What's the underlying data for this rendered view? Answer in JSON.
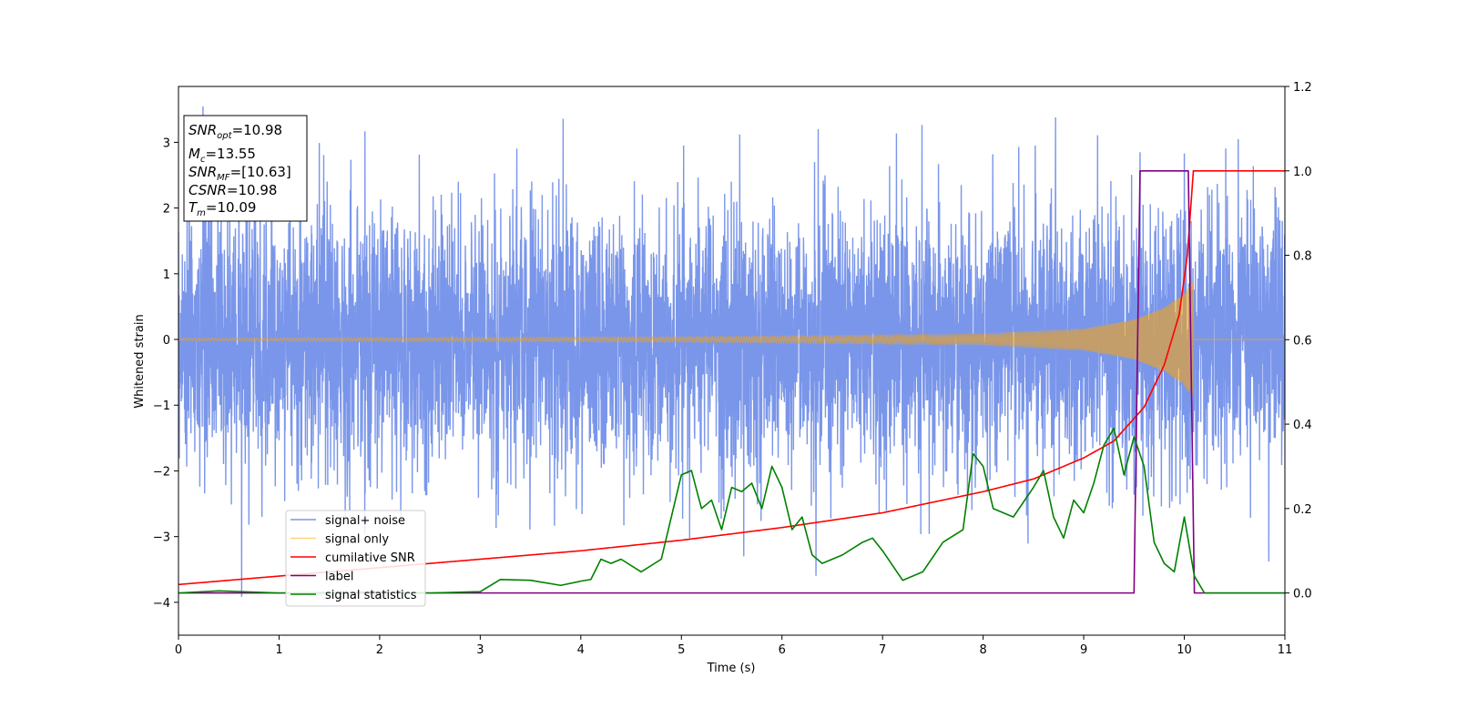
{
  "chart_data": {
    "type": "line",
    "xlabel": "Time (s)",
    "ylabel": "Whitened strain",
    "xlim": [
      0,
      11
    ],
    "ylim_left": [
      -4.5,
      3.85
    ],
    "ylim_right": [
      -0.1,
      1.2
    ],
    "x_ticks": [
      0,
      1,
      2,
      3,
      4,
      5,
      6,
      7,
      8,
      9,
      10,
      11
    ],
    "y_ticks_left": [
      -4,
      -3,
      -2,
      -1,
      0,
      1,
      2,
      3
    ],
    "y_ticks_right": [
      0.0,
      0.2,
      0.4,
      0.6,
      0.8,
      1.0,
      1.2
    ],
    "y_tick_labels_left": [
      "−4",
      "−3",
      "−2",
      "−1",
      "0",
      "1",
      "2",
      "3"
    ],
    "y_tick_labels_right": [
      "0.0",
      "0.2",
      "0.4",
      "0.6",
      "0.8",
      "1.0",
      "1.2"
    ],
    "grid": false,
    "legend_position": "lower-left",
    "stats_box": {
      "snr_opt": {
        "base": "SNR",
        "sub": "opt",
        "value": "=10.98"
      },
      "mc": {
        "base": "M",
        "sub": "c",
        "value": "=13.55"
      },
      "snr_mf": {
        "base": "SNR",
        "sub": "MF",
        "value": "=[10.63]"
      },
      "csnr": {
        "base": "CSNR",
        "value": "=10.98"
      },
      "tm": {
        "base": "T",
        "sub": "m",
        "value": "=10.09"
      }
    },
    "series": [
      {
        "name": "signal+ noise",
        "axis": "left",
        "color": "#4169e1",
        "kind": "noise",
        "x_range": [
          0,
          11
        ],
        "sigma": 1.0,
        "sample_rate_hz": 500,
        "notable_peaks": [
          {
            "x": 8.72,
            "y": 3.38
          },
          {
            "x": 5.58,
            "y": 3.12
          },
          {
            "x": 6.36,
            "y": 3.2
          },
          {
            "x": 9.56,
            "y": 2.85
          },
          {
            "x": 10.0,
            "y": 2.83
          },
          {
            "x": 10.84,
            "y": -3.38
          },
          {
            "x": 0.7,
            "y": -2.82
          },
          {
            "x": 5.62,
            "y": -3.3
          }
        ]
      },
      {
        "name": "signal only",
        "axis": "left",
        "color": "#ffa500",
        "kind": "chirp",
        "t_merge": 10.09,
        "amplitude_points": [
          [
            0,
            0.02
          ],
          [
            5,
            0.04
          ],
          [
            8,
            0.08
          ],
          [
            9,
            0.16
          ],
          [
            9.5,
            0.3
          ],
          [
            9.8,
            0.48
          ],
          [
            10.0,
            0.7
          ],
          [
            10.09,
            0.9
          ]
        ]
      },
      {
        "name": "cumilative SNR",
        "axis": "right",
        "color": "#ff0000",
        "points": [
          [
            0,
            0.02
          ],
          [
            1,
            0.04
          ],
          [
            2,
            0.06
          ],
          [
            3,
            0.08
          ],
          [
            4,
            0.1
          ],
          [
            5,
            0.125
          ],
          [
            6,
            0.155
          ],
          [
            7,
            0.19
          ],
          [
            8,
            0.24
          ],
          [
            8.5,
            0.27
          ],
          [
            9,
            0.32
          ],
          [
            9.3,
            0.36
          ],
          [
            9.6,
            0.44
          ],
          [
            9.8,
            0.54
          ],
          [
            9.95,
            0.66
          ],
          [
            10.03,
            0.8
          ],
          [
            10.09,
            1.0
          ],
          [
            11,
            1.0
          ]
        ]
      },
      {
        "name": "label",
        "axis": "right",
        "color": "#800080",
        "points": [
          [
            0,
            0.0
          ],
          [
            9.5,
            0.0
          ],
          [
            9.56,
            1.0
          ],
          [
            10.04,
            1.0
          ],
          [
            10.1,
            0.0
          ],
          [
            11,
            0.0
          ]
        ]
      },
      {
        "name": "signal statistics",
        "axis": "right",
        "color": "#008000",
        "points": [
          [
            0,
            0.0
          ],
          [
            0.4,
            0.005
          ],
          [
            1,
            0.0
          ],
          [
            2,
            0.002
          ],
          [
            2.5,
            0.0
          ],
          [
            3,
            0.003
          ],
          [
            3.2,
            0.032
          ],
          [
            3.5,
            0.03
          ],
          [
            3.8,
            0.018
          ],
          [
            4.0,
            0.028
          ],
          [
            4.1,
            0.032
          ],
          [
            4.2,
            0.08
          ],
          [
            4.3,
            0.07
          ],
          [
            4.4,
            0.08
          ],
          [
            4.6,
            0.05
          ],
          [
            4.8,
            0.08
          ],
          [
            5.0,
            0.28
          ],
          [
            5.1,
            0.29
          ],
          [
            5.2,
            0.2
          ],
          [
            5.3,
            0.22
          ],
          [
            5.4,
            0.15
          ],
          [
            5.5,
            0.25
          ],
          [
            5.6,
            0.24
          ],
          [
            5.7,
            0.26
          ],
          [
            5.8,
            0.2
          ],
          [
            5.9,
            0.3
          ],
          [
            6.0,
            0.25
          ],
          [
            6.1,
            0.15
          ],
          [
            6.2,
            0.18
          ],
          [
            6.3,
            0.09
          ],
          [
            6.4,
            0.07
          ],
          [
            6.6,
            0.09
          ],
          [
            6.8,
            0.12
          ],
          [
            6.9,
            0.13
          ],
          [
            7.0,
            0.1
          ],
          [
            7.2,
            0.03
          ],
          [
            7.4,
            0.05
          ],
          [
            7.6,
            0.12
          ],
          [
            7.8,
            0.15
          ],
          [
            7.9,
            0.33
          ],
          [
            8.0,
            0.3
          ],
          [
            8.1,
            0.2
          ],
          [
            8.3,
            0.18
          ],
          [
            8.5,
            0.25
          ],
          [
            8.6,
            0.29
          ],
          [
            8.7,
            0.18
          ],
          [
            8.8,
            0.13
          ],
          [
            8.9,
            0.22
          ],
          [
            9.0,
            0.19
          ],
          [
            9.1,
            0.26
          ],
          [
            9.2,
            0.35
          ],
          [
            9.3,
            0.39
          ],
          [
            9.4,
            0.28
          ],
          [
            9.5,
            0.37
          ],
          [
            9.6,
            0.3
          ],
          [
            9.7,
            0.12
          ],
          [
            9.8,
            0.07
          ],
          [
            9.9,
            0.05
          ],
          [
            10.0,
            0.18
          ],
          [
            10.1,
            0.04
          ],
          [
            10.2,
            0.0
          ],
          [
            11,
            0.0
          ]
        ]
      }
    ]
  }
}
